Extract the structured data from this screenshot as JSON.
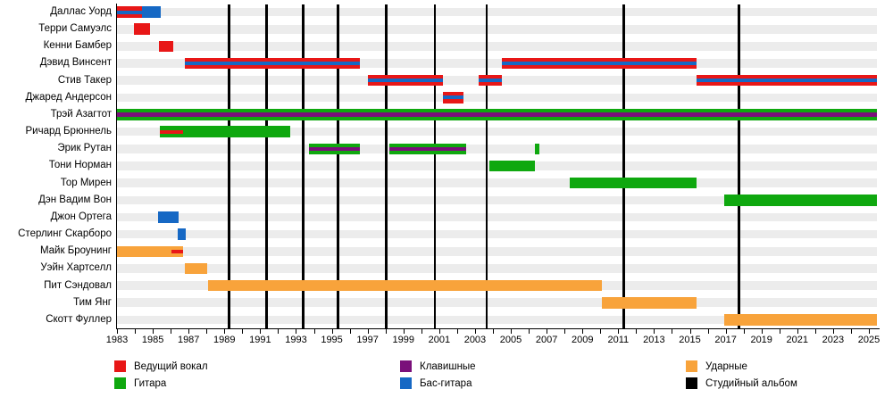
{
  "chart_data": {
    "type": "timeline",
    "title": "",
    "x_axis": {
      "min": 1983,
      "max": 2025.45,
      "minor_tick_step": 1,
      "labeled_years": [
        1983,
        1985,
        1987,
        1989,
        1991,
        1993,
        1995,
        1997,
        1999,
        2001,
        2003,
        2005,
        2007,
        2009,
        2011,
        2013,
        2015,
        2017,
        2019,
        2021,
        2023,
        2025
      ]
    },
    "roles": {
      "vocals": {
        "label": "Ведущий вокал",
        "color": "#e81717"
      },
      "guitar": {
        "label": "Гитара",
        "color": "#0fa80f"
      },
      "keyboards": {
        "label": "Клавишные",
        "color": "#7a0f7a"
      },
      "bass": {
        "label": "Бас-гитара",
        "color": "#1668c4"
      },
      "drums": {
        "label": "Ударные",
        "color": "#f8a33b"
      },
      "album": {
        "label": "Студийный альбом",
        "color": "#000000"
      }
    },
    "legend": {
      "columns": [
        [
          "vocals",
          "guitar"
        ],
        [
          "keyboards",
          "bass"
        ],
        [
          "drums",
          "album"
        ]
      ]
    },
    "members": [
      {
        "name": "Даллас Уорд",
        "bars": [
          {
            "start": 1983.0,
            "end": 1984.4,
            "role": "vocals",
            "stripe": "bass"
          },
          {
            "start": 1984.4,
            "end": 1985.45,
            "role": "bass"
          }
        ]
      },
      {
        "name": "Терри Самуэлс",
        "bars": [
          {
            "start": 1983.95,
            "end": 1984.85,
            "role": "vocals"
          }
        ]
      },
      {
        "name": "Кенни Бамбер",
        "bars": [
          {
            "start": 1985.35,
            "end": 1986.15,
            "role": "vocals"
          }
        ]
      },
      {
        "name": "Дэвид Винсент",
        "bars": [
          {
            "start": 1986.8,
            "end": 1996.55,
            "role": "vocals",
            "stripe": "bass"
          },
          {
            "start": 2004.5,
            "end": 2015.35,
            "role": "vocals",
            "stripe": "bass"
          }
        ]
      },
      {
        "name": "Стив Такер",
        "bars": [
          {
            "start": 1997.0,
            "end": 2001.2,
            "role": "vocals",
            "stripe": "bass"
          },
          {
            "start": 2003.2,
            "end": 2004.5,
            "role": "vocals",
            "stripe": "bass"
          },
          {
            "start": 2015.35,
            "end": 2025.45,
            "role": "vocals",
            "stripe": "bass"
          }
        ]
      },
      {
        "name": "Джаред Андерсон",
        "bars": [
          {
            "start": 2001.2,
            "end": 2002.35,
            "role": "vocals",
            "stripe": "bass"
          }
        ]
      },
      {
        "name": "Трэй Азагтот",
        "bars": [
          {
            "start": 1983.0,
            "end": 2025.45,
            "role": "guitar",
            "stripe": "keyboards"
          }
        ]
      },
      {
        "name": "Ричард Брюннель",
        "bars": [
          {
            "start": 1985.4,
            "end": 1986.7,
            "role": "guitar",
            "stripe": "vocals"
          },
          {
            "start": 1986.7,
            "end": 1992.7,
            "role": "guitar"
          }
        ]
      },
      {
        "name": "Эрик Рутан",
        "bars": [
          {
            "start": 1993.7,
            "end": 1996.55,
            "role": "guitar",
            "stripe": "keyboards"
          },
          {
            "start": 1998.2,
            "end": 2002.5,
            "role": "guitar",
            "stripe": "keyboards"
          },
          {
            "start": 2006.35,
            "end": 2006.6,
            "role": "guitar"
          }
        ]
      },
      {
        "name": "Тони Норман",
        "bars": [
          {
            "start": 2003.8,
            "end": 2006.35,
            "role": "guitar"
          }
        ]
      },
      {
        "name": "Тор Мирен",
        "bars": [
          {
            "start": 2008.3,
            "end": 2015.35,
            "role": "guitar"
          }
        ]
      },
      {
        "name": "Дэн Вадим Вон",
        "bars": [
          {
            "start": 2016.9,
            "end": 2025.45,
            "role": "guitar"
          }
        ]
      },
      {
        "name": "Джон Ортега",
        "bars": [
          {
            "start": 1985.3,
            "end": 1986.45,
            "role": "bass"
          }
        ]
      },
      {
        "name": "Стерлинг Скарборо",
        "bars": [
          {
            "start": 1986.4,
            "end": 1986.85,
            "role": "bass"
          }
        ]
      },
      {
        "name": "Майк Броунинг",
        "bars": [
          {
            "start": 1983.0,
            "end": 1986.05,
            "role": "drums"
          },
          {
            "start": 1986.05,
            "end": 1986.7,
            "role": "drums",
            "stripe": "vocals"
          }
        ]
      },
      {
        "name": "Уэйн Хартселл",
        "bars": [
          {
            "start": 1986.8,
            "end": 1988.05,
            "role": "drums"
          }
        ]
      },
      {
        "name": "Пит Сэндовал",
        "bars": [
          {
            "start": 1988.1,
            "end": 2010.1,
            "role": "drums"
          }
        ]
      },
      {
        "name": "Тим Янг",
        "bars": [
          {
            "start": 2010.1,
            "end": 2015.35,
            "role": "drums"
          }
        ]
      },
      {
        "name": "Скотт Фуллер",
        "bars": [
          {
            "start": 2016.9,
            "end": 2025.45,
            "role": "drums"
          }
        ]
      }
    ],
    "albums": [
      1989.25,
      1991.35,
      1993.4,
      1995.35,
      1998.05,
      2000.75,
      2003.65,
      2011.3,
      2017.75
    ]
  }
}
